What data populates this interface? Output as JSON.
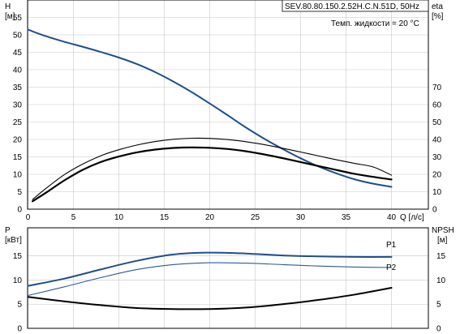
{
  "info": {
    "pump_label": "SEV.80.80.150.2.52H.C.N.51D, 50Hz",
    "liquid_temp": "Темп. жидкости = 20 °C"
  },
  "colors": {
    "head_curve": "#1f4e8c",
    "eta_curve": "#000000",
    "p1_curve": "#1f4e8c",
    "p2_curve": "#2a5a99",
    "npsh_curve": "#000000",
    "grid": "#c8c8c8"
  },
  "chart_data": [
    {
      "type": "line",
      "x_title": "Q [л/с]",
      "left_title": "H",
      "left_unit": "[м]",
      "right_title": "eta",
      "right_unit": "[%]",
      "xlim": [
        0,
        40
      ],
      "ylim_left": [
        0,
        60
      ],
      "ylim_right": [
        0,
        120
      ],
      "x_ticks": [
        0,
        5,
        10,
        15,
        20,
        25,
        30,
        35,
        40
      ],
      "y_ticks_left": [
        0,
        5,
        10,
        15,
        20,
        25,
        30,
        35,
        40,
        45,
        50,
        55
      ],
      "y_ticks_right": [
        0,
        10,
        20,
        30,
        40,
        50,
        60,
        70
      ],
      "grid": true,
      "series": [
        {
          "key": "head",
          "axis": "left",
          "x": [
            0,
            2,
            4,
            6,
            8,
            10,
            12,
            14,
            16,
            18,
            20,
            22,
            24,
            26,
            28,
            30,
            32,
            34,
            36,
            38,
            40
          ],
          "y": [
            51.5,
            49.6,
            48,
            46.6,
            45.1,
            43.5,
            41.6,
            39.3,
            36.6,
            33.6,
            30.3,
            26.9,
            23.4,
            20.2,
            17.3,
            14.6,
            12.2,
            10.2,
            8.5,
            7.3,
            6.4
          ]
        },
        {
          "key": "eta_thin",
          "axis": "right",
          "x": [
            0.5,
            2,
            4,
            6,
            8,
            10,
            12,
            14,
            16,
            18,
            20,
            22,
            24,
            26,
            28,
            30,
            32,
            34,
            36,
            38,
            40
          ],
          "y": [
            5.5,
            12,
            19.8,
            25.8,
            30.6,
            34.1,
            36.8,
            38.8,
            40.1,
            40.7,
            40.6,
            39.9,
            38.7,
            37,
            35,
            32.8,
            30.5,
            28.3,
            26.2,
            24.2,
            19.5
          ]
        },
        {
          "key": "eta_bold",
          "axis": "right",
          "x": [
            0.5,
            2,
            4,
            6,
            8,
            10,
            12,
            14,
            16,
            18,
            20,
            22,
            24,
            26,
            28,
            30,
            32,
            34,
            36,
            38,
            40
          ],
          "y": [
            4.5,
            9.5,
            16.5,
            22.5,
            27,
            30.2,
            32.6,
            34.2,
            35.1,
            35.4,
            35.2,
            34.5,
            33.2,
            31.4,
            29.3,
            27,
            24.7,
            22.4,
            20.2,
            18.5,
            17
          ]
        }
      ]
    },
    {
      "type": "line",
      "left_title": "P",
      "left_unit": "[кВт]",
      "right_title": "NPSH",
      "right_unit": "[м]",
      "xlim": [
        0,
        40
      ],
      "ylim_left": [
        0,
        20
      ],
      "ylim_right": [
        0,
        20
      ],
      "y_ticks_left": [
        0,
        5,
        10,
        15
      ],
      "y_ticks_right": [
        0,
        5,
        10,
        15
      ],
      "grid": true,
      "series": [
        {
          "key": "p1",
          "name": "P1",
          "axis": "left",
          "x": [
            0,
            4,
            8,
            12,
            16,
            20,
            24,
            28,
            32,
            36,
            40
          ],
          "y": [
            8.8,
            10.3,
            12.2,
            14,
            15.3,
            15.7,
            15.5,
            15.1,
            14.9,
            14.8,
            14.8
          ]
        },
        {
          "key": "p2",
          "name": "P2",
          "axis": "left",
          "x": [
            0,
            4,
            8,
            12,
            16,
            20,
            24,
            28,
            32,
            36,
            40
          ],
          "y": [
            6.8,
            8.6,
            10.5,
            12.2,
            13.2,
            13.6,
            13.5,
            13.2,
            12.9,
            12.7,
            12.6
          ]
        },
        {
          "key": "npsh",
          "axis": "right",
          "x": [
            0,
            4,
            8,
            12,
            16,
            20,
            24,
            28,
            32,
            36,
            40
          ],
          "y": [
            6.5,
            5.6,
            4.8,
            4.2,
            4,
            4,
            4.3,
            5,
            5.9,
            7,
            8.4
          ]
        }
      ]
    }
  ]
}
